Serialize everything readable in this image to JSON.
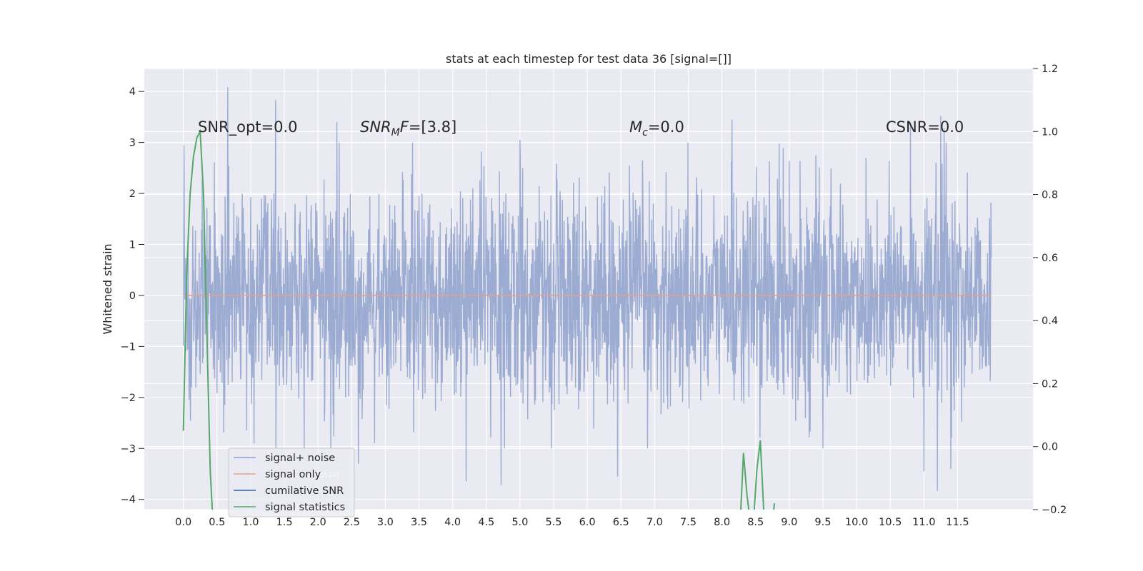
{
  "chart_data": {
    "type": "line",
    "title": "stats at each timestep for test data 36 [signal=[]]",
    "xlabel": "",
    "ylabel": "Whitened strain",
    "xlim": [
      -0.58,
      12.62
    ],
    "ylim": [
      -4.2,
      4.45
    ],
    "y2lim": [
      -0.2,
      1.2
    ],
    "grid": true,
    "legend_position": "lower-left",
    "x_ticks": [
      "0.0",
      "0.5",
      "1.0",
      "1.5",
      "2.0",
      "2.5",
      "3.0",
      "3.5",
      "4.0",
      "4.5",
      "5.0",
      "5.5",
      "6.0",
      "6.5",
      "7.0",
      "7.5",
      "8.0",
      "8.5",
      "9.0",
      "9.5",
      "10.0",
      "10.5",
      "11.0",
      "11.5"
    ],
    "y_ticks": [
      "4",
      "3",
      "2",
      "1",
      "0",
      "−1",
      "−2",
      "−3",
      "−4"
    ],
    "y2_ticks": [
      "1.2",
      "1.0",
      "0.8",
      "0.6",
      "0.4",
      "0.2",
      "0.0",
      "−0.2"
    ],
    "annotations": {
      "snr_opt": "SNR_opt=0.0",
      "snr_mf_base": "SNR",
      "snr_mf_sub": "M",
      "snr_mf_rest": "F=[3.8]",
      "mc_base": "M",
      "mc_sub": "c",
      "mc_rest": "=0.0",
      "csnr": "CSNR=0.0"
    },
    "series": [
      {
        "name": "signal+ noise",
        "color": "#8da0cb",
        "description_range": {
          "x": [
            0.0,
            12.0
          ],
          "y_min_approx": -3.8,
          "y_max_approx": 4.1
        },
        "highlight_peaks": [
          {
            "x": 0.01,
            "y": 2.95
          },
          {
            "x": 0.66,
            "y": 4.08
          },
          {
            "x": 1.37,
            "y": 3.83
          },
          {
            "x": 2.28,
            "y": 3.4
          },
          {
            "x": 5.0,
            "y": 3.05
          },
          {
            "x": 8.15,
            "y": 3.45
          },
          {
            "x": 10.8,
            "y": 3.4
          },
          {
            "x": 11.25,
            "y": 3.52
          },
          {
            "x": 11.3,
            "y": 3.28
          }
        ],
        "highlight_troughs": [
          {
            "x": 1.05,
            "y": -2.9
          },
          {
            "x": 2.6,
            "y": -3.3
          },
          {
            "x": 4.2,
            "y": -3.65
          },
          {
            "x": 4.72,
            "y": -3.72
          },
          {
            "x": 6.45,
            "y": -3.55
          },
          {
            "x": 9.5,
            "y": -3.0
          },
          {
            "x": 11.0,
            "y": -3.45
          },
          {
            "x": 11.2,
            "y": -3.83
          },
          {
            "x": 11.4,
            "y": -3.4
          }
        ]
      },
      {
        "name": "signal only",
        "color": "#e5a18e",
        "x": [
          0.0,
          12.0
        ],
        "y": [
          0.0,
          0.0
        ]
      },
      {
        "name": "cumilative SNR",
        "color": "#3a5ea8",
        "x": [],
        "y": []
      },
      {
        "name": "signal statistics",
        "color": "#55a868",
        "axis": "right",
        "segments": [
          {
            "x": [
              0.0,
              0.05,
              0.1,
              0.15,
              0.2,
              0.25,
              0.3,
              0.35,
              0.4,
              0.43
            ],
            "y": [
              0.05,
              0.55,
              0.8,
              0.92,
              0.98,
              1.0,
              0.8,
              0.35,
              -0.08,
              -0.2
            ]
          },
          {
            "x": [
              8.28,
              8.32,
              8.37,
              8.41
            ],
            "y": [
              -0.2,
              -0.02,
              -0.15,
              -0.22
            ]
          },
          {
            "x": [
              8.48,
              8.52,
              8.57,
              8.62
            ],
            "y": [
              -0.2,
              -0.07,
              0.02,
              -0.2
            ]
          },
          {
            "x": [
              8.77,
              8.78
            ],
            "y": [
              -0.2,
              -0.18
            ]
          }
        ]
      }
    ]
  },
  "legend": {
    "items": [
      {
        "label": "signal+ noise",
        "color": "#8da0cb"
      },
      {
        "label": "signal only",
        "color": "#e5a18e"
      },
      {
        "label": "cumilative SNR",
        "color": "#3a5ea8"
      },
      {
        "label": "signal statistics",
        "color": "#55a868"
      }
    ],
    "ghost_label_1": "noise",
    "ghost_label_2": "statistics"
  },
  "colors": {
    "plot_background": "#eaeaf2",
    "grid": "#ffffff",
    "text": "#262626"
  }
}
